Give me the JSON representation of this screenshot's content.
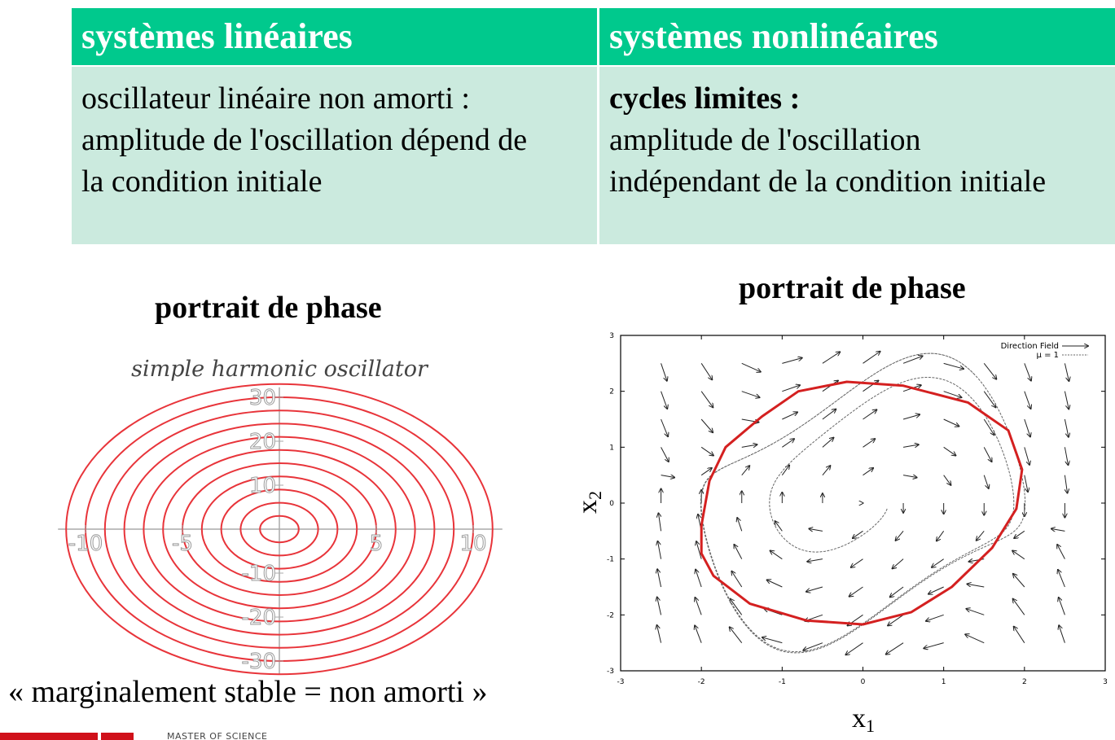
{
  "table": {
    "headers": [
      "systèmes linéaires",
      "systèmes nonlinéaires"
    ],
    "left_cell": {
      "lines": [
        "oscillateur linéaire non amorti :",
        "amplitude de l'oscillation dépend de",
        "la condition initiale"
      ]
    },
    "right_cell": {
      "bold_line": "cycles limites :",
      "lines": [
        "amplitude de l'oscillation",
        "indépendant de la condition initiale"
      ]
    }
  },
  "left_plot": {
    "title": "portrait de phase",
    "subtitle": "simple harmonic oscillator",
    "caption": "« marginalement stable = non amorti »",
    "chart_data": {
      "type": "line",
      "title": "simple harmonic oscillator",
      "xlim": [
        -11,
        11
      ],
      "ylim": [
        -33,
        33
      ],
      "x_ticks": [
        "-10",
        "-5",
        "5",
        "10"
      ],
      "y_ticks": [
        "30",
        "20",
        "10",
        "-10",
        "-20",
        "-30"
      ],
      "curve_color": "#e8343a",
      "ellipse_semi_axes_x": [
        1,
        2,
        3,
        4,
        5,
        6,
        7,
        8,
        9,
        10,
        11
      ],
      "ellipse_semi_axes_y": [
        3,
        6,
        9,
        12,
        15,
        18,
        21,
        24,
        27,
        30,
        33
      ]
    }
  },
  "right_plot": {
    "title": "portrait de phase",
    "chart_data": {
      "type": "line",
      "xlabel": "x1",
      "ylabel": "x2",
      "xlim": [
        -3,
        3
      ],
      "ylim": [
        -3,
        3
      ],
      "x_ticks": [
        "-3",
        "-2",
        "-1",
        "0",
        "1",
        "2",
        "3"
      ],
      "y_ticks": [
        "-3",
        "-2",
        "-1",
        "0",
        "1",
        "2",
        "3"
      ],
      "legend": [
        "Direction Field",
        "μ = 1"
      ],
      "limit_cycle_color": "#d42020",
      "limit_cycle": [
        [
          -2.0,
          -0.4
        ],
        [
          -1.9,
          0.4
        ],
        [
          -1.7,
          1.0
        ],
        [
          -1.25,
          1.55
        ],
        [
          -0.8,
          2.0
        ],
        [
          -0.2,
          2.17
        ],
        [
          0.5,
          2.1
        ],
        [
          1.3,
          1.8
        ],
        [
          1.8,
          1.3
        ],
        [
          1.97,
          0.6
        ],
        [
          1.9,
          -0.1
        ],
        [
          1.6,
          -0.8
        ],
        [
          1.1,
          -1.5
        ],
        [
          0.6,
          -1.95
        ],
        [
          0.0,
          -2.17
        ],
        [
          -0.7,
          -2.1
        ],
        [
          -1.4,
          -1.8
        ],
        [
          -1.85,
          -1.3
        ],
        [
          -2.0,
          -0.9
        ],
        [
          -2.0,
          -0.4
        ]
      ],
      "trajectory_start": [
        0.3,
        -0.1
      ],
      "trajectory_color": "#666666"
    }
  },
  "logo": {
    "text": "MASTER OF SCIENCE"
  }
}
